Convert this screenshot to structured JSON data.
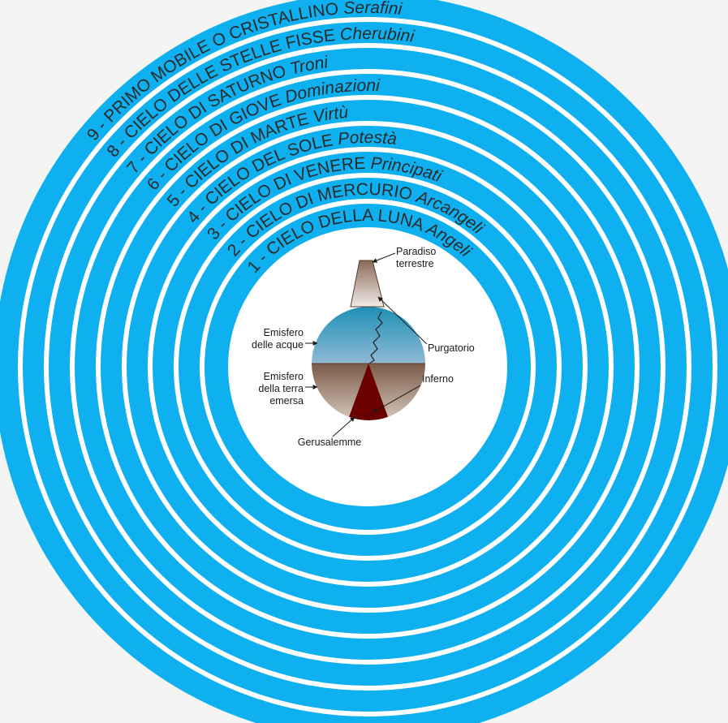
{
  "colors": {
    "background": "#f4f4f2",
    "ring": "#0eb0ef",
    "ring_gap": "#ffffff",
    "water_top": "#1a8fb4",
    "water_bottom": "#8fb9d6",
    "land_top": "#7a5a48",
    "land_bottom": "#dccfc4",
    "inferno": "#6a0000",
    "mountain_top": "#8a6a58",
    "mountain_bottom": "#f1ebe6"
  },
  "heavens": [
    {
      "number": "1",
      "name": "CIELO DELLA LUNA",
      "choir": "Angeli"
    },
    {
      "number": "2",
      "name": "CIELO DI MERCURIO",
      "choir": "Arcangeli"
    },
    {
      "number": "3",
      "name": "CIELO DI VENERE",
      "choir": "Principati"
    },
    {
      "number": "4",
      "name": "CIELO DEL SOLE",
      "choir": "Potestà"
    },
    {
      "number": "5",
      "name": "CIELO DI MARTE",
      "choir": "Virtù"
    },
    {
      "number": "6",
      "name": "CIELO DI GIOVE",
      "choir": "Dominazioni"
    },
    {
      "number": "7",
      "name": "CIELO DI SATURNO",
      "choir": "Troni"
    },
    {
      "number": "8",
      "name": "CIELO DELLE STELLE FISSE",
      "choir": "Cherubini"
    },
    {
      "number": "9",
      "name": "PRIMO MOBILE O CRISTALLINO",
      "choir": "Serafini"
    }
  ],
  "earth_labels": {
    "paradiso_line1": "Paradiso",
    "paradiso_line2": "terrestre",
    "purgatorio": "Purgatorio",
    "inferno": "Inferno",
    "gerusalemme": "Gerusalemme",
    "acque_line1": "Emisfero",
    "acque_line2": "delle acque",
    "terra_line1": "Emisfero",
    "terra_line2": "della terra",
    "terra_line3": "emersa"
  }
}
